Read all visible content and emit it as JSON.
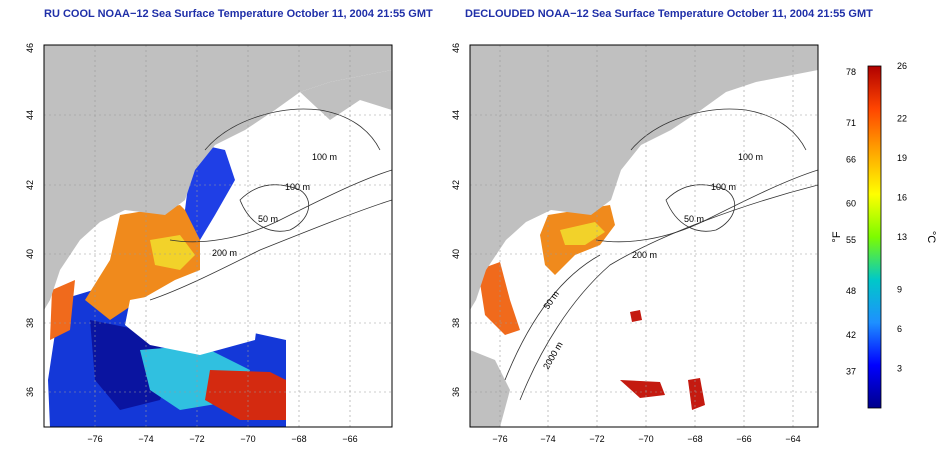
{
  "panels": [
    {
      "title": "RU COOL NOAA−12 Sea Surface Temperature October 11, 2004 21:55 GMT",
      "contour_labels": [
        "100 m",
        "100 m",
        "50 m",
        "200 m"
      ]
    },
    {
      "title": "DECLOUDED NOAA−12 Sea Surface Temperature October 11, 2004 21:55 GMT",
      "contour_labels": [
        "100 m",
        "100 m",
        "50 m",
        "200 m",
        "50 m",
        "2000 m"
      ]
    }
  ],
  "axes": {
    "x_ticks": [
      "−76",
      "−74",
      "−72",
      "−70",
      "−68",
      "−66",
      "−64"
    ],
    "y_ticks": [
      "36",
      "38",
      "40",
      "42",
      "44",
      "46"
    ],
    "lon_range": [
      -77,
      -63
    ],
    "lat_range": [
      35,
      46
    ],
    "grid": "dotted"
  },
  "colorbar": {
    "unit_f": "°F",
    "unit_c": "°C",
    "f_ticks": [
      "78",
      "71",
      "66",
      "60",
      "55",
      "48",
      "42",
      "37"
    ],
    "c_ticks": [
      "26",
      "22",
      "19",
      "16",
      "13",
      "9",
      "6",
      "3"
    ],
    "c_range": [
      0,
      26
    ],
    "colors": [
      "#00008b",
      "#0000ff",
      "#1e90ff",
      "#00c8c8",
      "#7cfc00",
      "#ffff00",
      "#ffa500",
      "#ff4500",
      "#b00000"
    ]
  },
  "colors": {
    "land": "#c0c0c0",
    "ocean": "#ffffff",
    "title": "#1f2fa8"
  }
}
